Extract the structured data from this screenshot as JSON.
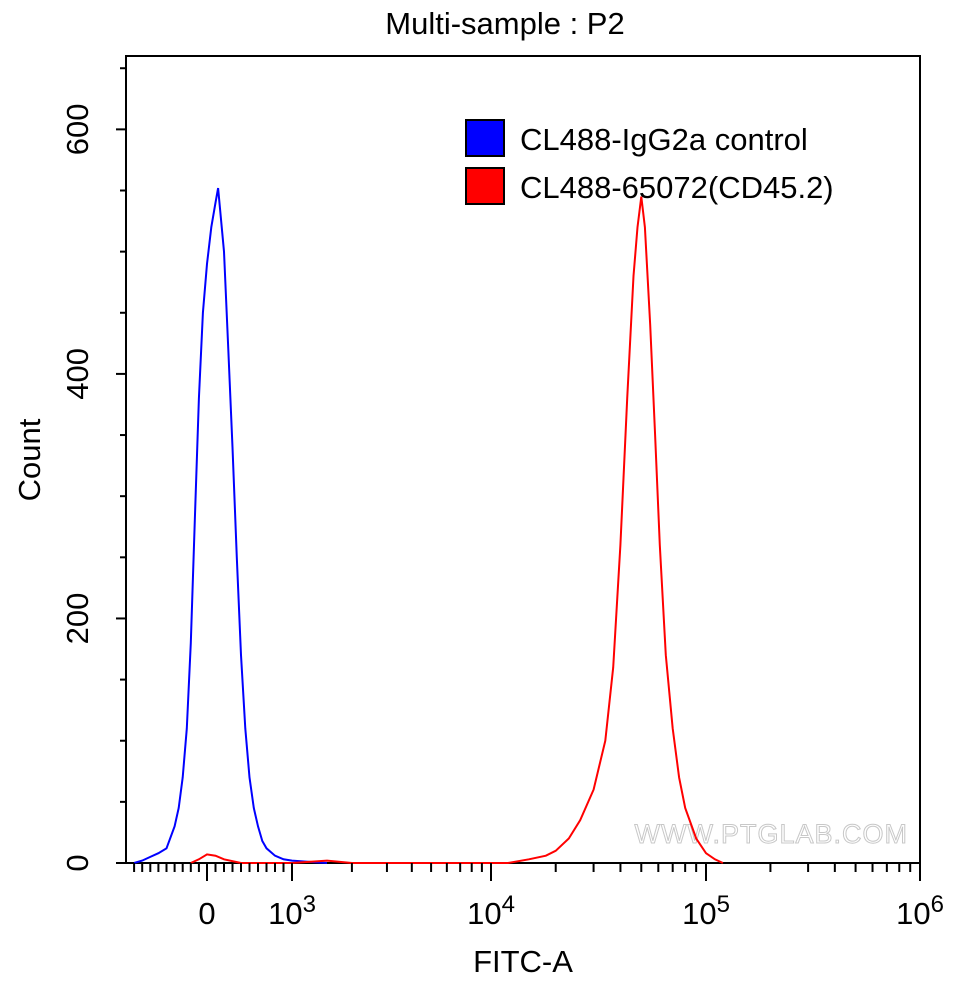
{
  "chart_data": {
    "type": "line",
    "title": "Multi-sample : P2",
    "xlabel": "FITC-A",
    "ylabel": "Count",
    "xscale": "biexponential",
    "ylim": [
      0,
      660
    ],
    "x_ticks": [
      {
        "value": 0,
        "label": "0",
        "exp": ""
      },
      {
        "value": 1000,
        "label": "10",
        "exp": "3"
      },
      {
        "value": 10000,
        "label": "10",
        "exp": "4"
      },
      {
        "value": 100000,
        "label": "10",
        "exp": "5"
      },
      {
        "value": 1000000,
        "label": "10",
        "exp": "6"
      }
    ],
    "y_ticks": [
      {
        "value": 0,
        "label": "0"
      },
      {
        "value": 200,
        "label": "200"
      },
      {
        "value": 400,
        "label": "400"
      },
      {
        "value": 600,
        "label": "600"
      }
    ],
    "legend_position": "top-right",
    "grid": false,
    "watermark": "WWW.PTGLAB.COM",
    "series": [
      {
        "name": "CL488-IgG2a control",
        "color": "#0000ff",
        "points": [
          [
            -900,
            0
          ],
          [
            -800,
            2
          ],
          [
            -700,
            5
          ],
          [
            -600,
            8
          ],
          [
            -500,
            12
          ],
          [
            -400,
            30
          ],
          [
            -350,
            45
          ],
          [
            -300,
            70
          ],
          [
            -250,
            110
          ],
          [
            -200,
            180
          ],
          [
            -150,
            280
          ],
          [
            -100,
            380
          ],
          [
            -50,
            450
          ],
          [
            0,
            490
          ],
          [
            50,
            520
          ],
          [
            100,
            540
          ],
          [
            130,
            552
          ],
          [
            160,
            530
          ],
          [
            200,
            500
          ],
          [
            250,
            420
          ],
          [
            300,
            340
          ],
          [
            350,
            250
          ],
          [
            400,
            170
          ],
          [
            450,
            110
          ],
          [
            500,
            70
          ],
          [
            550,
            45
          ],
          [
            600,
            30
          ],
          [
            650,
            18
          ],
          [
            700,
            12
          ],
          [
            800,
            6
          ],
          [
            900,
            3
          ],
          [
            1000,
            2
          ],
          [
            1200,
            1
          ],
          [
            1500,
            0
          ]
        ]
      },
      {
        "name": "CL488-65072(CD45.2)",
        "color": "#ff0000",
        "points": [
          [
            -200,
            0
          ],
          [
            -100,
            3
          ],
          [
            0,
            7
          ],
          [
            100,
            6
          ],
          [
            200,
            3
          ],
          [
            400,
            0
          ],
          [
            1000,
            0
          ],
          [
            1500,
            2
          ],
          [
            2000,
            0
          ],
          [
            12000,
            0
          ],
          [
            15000,
            3
          ],
          [
            18000,
            6
          ],
          [
            20000,
            10
          ],
          [
            23000,
            20
          ],
          [
            26000,
            35
          ],
          [
            30000,
            60
          ],
          [
            34000,
            100
          ],
          [
            37000,
            160
          ],
          [
            40000,
            260
          ],
          [
            43000,
            380
          ],
          [
            46000,
            480
          ],
          [
            48000,
            520
          ],
          [
            50000,
            545
          ],
          [
            52000,
            520
          ],
          [
            55000,
            440
          ],
          [
            58000,
            350
          ],
          [
            61000,
            260
          ],
          [
            65000,
            170
          ],
          [
            70000,
            110
          ],
          [
            75000,
            70
          ],
          [
            80000,
            45
          ],
          [
            90000,
            20
          ],
          [
            100000,
            8
          ],
          [
            110000,
            3
          ],
          [
            120000,
            0
          ]
        ]
      }
    ]
  }
}
